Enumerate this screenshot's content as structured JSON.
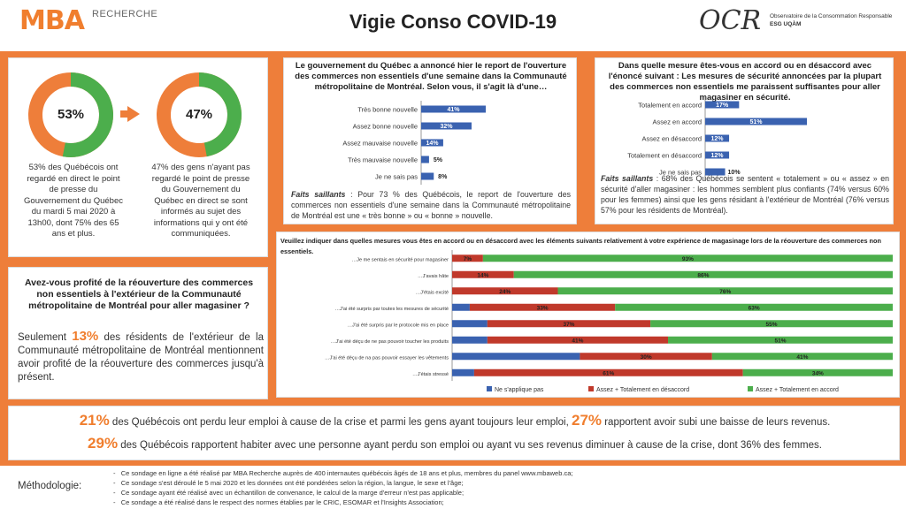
{
  "header": {
    "logo": "MBA",
    "logo_sub": "RECHERCHE",
    "title": "Vigie Conso COVID-19",
    "ocr_logo": "OCR",
    "ocr_line1": "Observatoire de la Consommation Responsable",
    "ocr_line2": "ESG UQÀM"
  },
  "donuts": [
    {
      "pct": 53,
      "label": "53%",
      "caption": "53% des Québécois ont regardé en direct le point de presse du Gouvernement du Québec du mardi 5 mai 2020 à 13h00, dont 75% des 65 ans et plus."
    },
    {
      "pct": 47,
      "label": "47%",
      "caption": "47% des gens n'ayant pas regardé le point de presse du Gouvernement du Québec en direct se sont informés au sujet des informations qui y ont été communiquées."
    }
  ],
  "colors": {
    "orange": "#ee7e3a",
    "green": "#4cae4c",
    "blue": "#3a62b0",
    "red": "#c0392b"
  },
  "q1": {
    "title": "Le gouvernement du Québec a annoncé hier le report de l'ouverture des commerces non essentiels d'une semaine dans la Communauté métropolitaine de Montréal. Selon vous, il s'agit là d'une…",
    "note_label": "Faits saillants",
    "note_text": " : Pour 73 % des Québécois, le report de l'ouverture des commerces non essentiels d'une semaine dans la Communauté métropolitaine de Montréal est une « très bonne » ou « bonne » nouvelle."
  },
  "q2": {
    "title": "Dans quelle mesure êtes-vous en accord ou en désaccord avec l'énoncé suivant : Les mesures de sécurité annoncées par la plupart des commerces non essentiels me paraissent suffisantes pour aller magasiner en sécurité.",
    "note_label": "Faits saillants",
    "note_text": " : 68% des Québécois se sentent « totalement » ou « assez » en sécurité d'aller magasiner : les hommes semblent plus confiants (74% versus 60% pour les femmes) ainsi que les gens résidant à l'extérieur de Montréal (76% versus 57% pour les résidents de Montréal)."
  },
  "q3": {
    "title": "Veuillez indiquer dans quelles mesures vous êtes en accord ou en désaccord avec les éléments suivants relativement à votre expérience de magasinage lors de la réouverture des commerces non essentiels."
  },
  "q4": {
    "title": "Avez-vous profité de la réouverture des commerces non essentiels à l'extérieur de la Communauté métropolitaine de Montréal pour aller magasiner ?",
    "pre": "Seulement ",
    "pct": "13%",
    "post": " des résidents de l'extérieur de la Communauté métropolitaine de Montréal mentionnent avoir profité de la réouverture des commerces jusqu'à présent."
  },
  "stats": {
    "line1_pct1": "21%",
    "line1_a": " des Québécois ont perdu leur emploi à cause de la crise et parmi les gens ayant toujours leur emploi, ",
    "line1_pct2": "27%",
    "line1_b": " rapportent avoir subi une baisse de leurs revenus.",
    "line2_pct": "29%",
    "line2_text": " des Québécois rapportent habiter avec une personne ayant perdu son emploi ou ayant vu ses revenus diminuer à cause de la crise, dont 36% des femmes."
  },
  "methodology": {
    "label": "Méthodologie:",
    "items": [
      "Ce sondage en ligne a été réalisé par MBA Recherche auprès de 400 internautes québécois âgés de 18 ans et plus, membres du panel www.mbaweb.ca;",
      "Ce sondage s'est déroulé le 5 mai 2020 et les données ont été pondérées selon la région, la langue, le sexe et l'âge;",
      "Ce sondage ayant été réalisé avec un échantillon de convenance, le calcul de la marge d'erreur n'est pas applicable;",
      "Ce sondage a été réalisé dans le respect des normes établies par le CRIC, ESOMAR et l'Insights Association;"
    ]
  },
  "chart_data": [
    {
      "type": "bar",
      "orientation": "horizontal",
      "categories": [
        "Très bonne nouvelle",
        "Assez bonne nouvelle",
        "Assez mauvaise nouvelle",
        "Très mauvaise nouvelle",
        "Je ne sais pas"
      ],
      "values": [
        41,
        32,
        14,
        5,
        8
      ],
      "labels": [
        "41%",
        "32%",
        "14%",
        "5%",
        "8%"
      ]
    },
    {
      "type": "bar",
      "orientation": "horizontal",
      "categories": [
        "Totalement en accord",
        "Assez en accord",
        "Assez en désaccord",
        "Totalement en désaccord",
        "Je ne sais pas"
      ],
      "values": [
        17,
        51,
        12,
        12,
        10
      ],
      "labels": [
        "17%",
        "51%",
        "12%",
        "12%",
        "10%"
      ]
    },
    {
      "type": "bar",
      "orientation": "horizontal",
      "stacked": true,
      "categories": [
        "…Je me sentais en sécurité pour magasiner",
        "…J'avais hâte",
        "…J'étais excité",
        "…J'ai été surpris par toutes les mesures de sécurité",
        "…J'ai été surpris par le protocole mis en place",
        "…J'ai été déçu de ne pas pouvoir toucher les produits",
        "…J'ai été déçu de na pas pouvoir essayer les vêtements",
        "…J'étais stressé"
      ],
      "series": [
        {
          "name": "Ne s'applique pas",
          "values": [
            0,
            0,
            0,
            4,
            8,
            8,
            29,
            5
          ],
          "labels": [
            "",
            "",
            "",
            "",
            "",
            "",
            "",
            ""
          ]
        },
        {
          "name": "Assez + Totalement en désaccord",
          "values": [
            7,
            14,
            24,
            33,
            37,
            41,
            30,
            61
          ],
          "labels": [
            "7%",
            "14%",
            "24%",
            "33%",
            "37%",
            "41%",
            "30%",
            "61%"
          ]
        },
        {
          "name": "Assez + Totalement en accord",
          "values": [
            93,
            86,
            76,
            63,
            55,
            51,
            41,
            34
          ],
          "labels": [
            "93%",
            "86%",
            "76%",
            "63%",
            "55%",
            "51%",
            "41%",
            "34%"
          ]
        }
      ],
      "legend": "bottom"
    }
  ]
}
